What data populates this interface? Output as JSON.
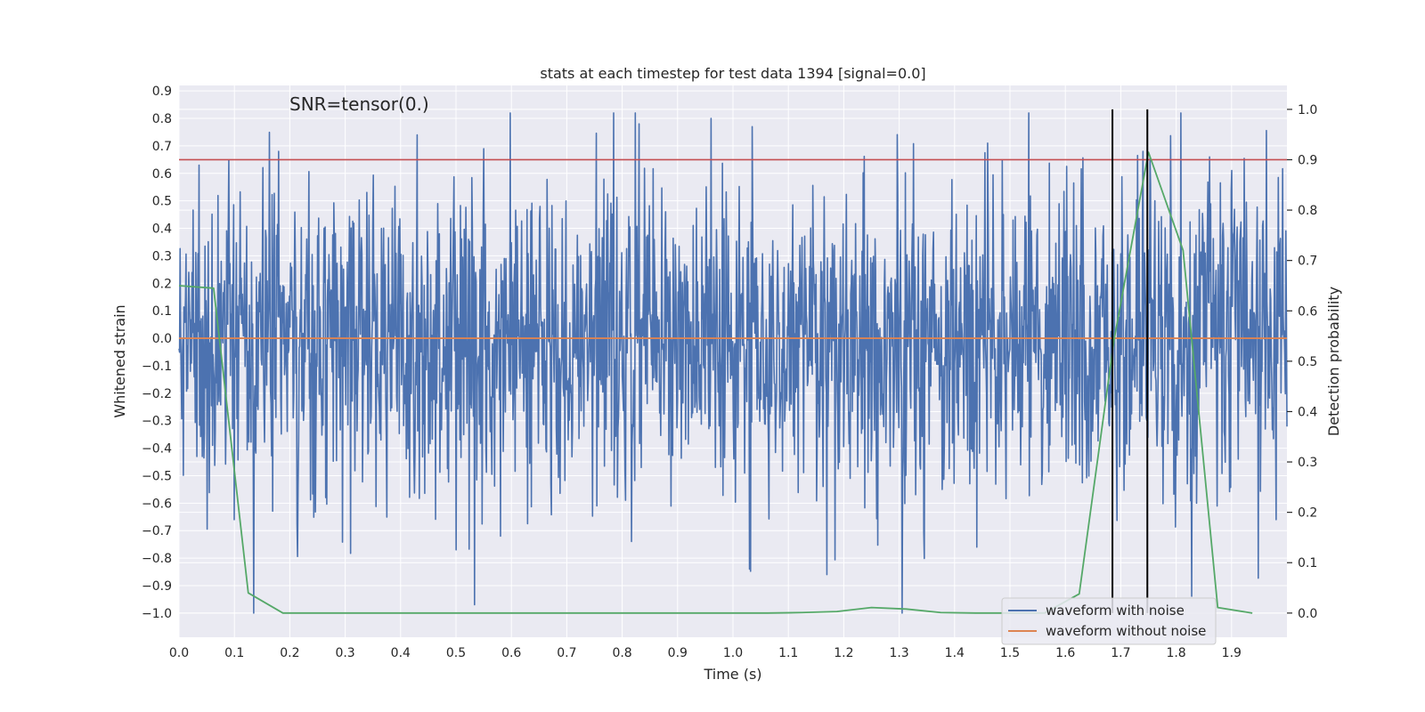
{
  "chart_data": {
    "type": "line",
    "title": "stats at each timestep for test data 1394 [signal=0.0]",
    "xlabel": "Time (s)",
    "ylabel": "Whitened strain",
    "y2label": "Detection probability",
    "xlim": [
      0.0,
      2.0
    ],
    "ylim": [
      -1.088,
      0.92
    ],
    "y2lim": [
      -0.048,
      1.0475
    ],
    "xticks": [
      0.0,
      0.1,
      0.2,
      0.3,
      0.4,
      0.5,
      0.6,
      0.7,
      0.8,
      0.9,
      1.0,
      1.1,
      1.2,
      1.3,
      1.4,
      1.5,
      1.6,
      1.7,
      1.8,
      1.9
    ],
    "xtick_labels": [
      "0.0",
      "0.1",
      "0.2",
      "0.3",
      "0.4",
      "0.5",
      "0.6",
      "0.7",
      "0.8",
      "0.9",
      "1.0",
      "1.1",
      "1.2",
      "1.3",
      "1.4",
      "1.5",
      "1.6",
      "1.7",
      "1.8",
      "1.9"
    ],
    "yticks": [
      0.9,
      0.8,
      0.7,
      0.6,
      0.5,
      0.4,
      0.3,
      0.2,
      0.1,
      0.0,
      -0.1,
      -0.2,
      -0.3,
      -0.4,
      -0.5,
      -0.6,
      -0.7,
      -0.8,
      -0.9,
      -1.0
    ],
    "ytick_labels": [
      "0.9",
      "0.8",
      "0.7",
      "0.6",
      "0.5",
      "0.4",
      "0.3",
      "0.2",
      "0.1",
      "0.0",
      "−0.1",
      "−0.2",
      "−0.3",
      "−0.4",
      "−0.5",
      "−0.6",
      "−0.7",
      "−0.8",
      "−0.9",
      "−1.0"
    ],
    "y2ticks": [
      1.0,
      0.9,
      0.8,
      0.7,
      0.6,
      0.5,
      0.4,
      0.3,
      0.2,
      0.1,
      0.0
    ],
    "y2tick_labels": [
      "1.0",
      "0.9",
      "0.8",
      "0.7",
      "0.6",
      "0.5",
      "0.4",
      "0.3",
      "0.2",
      "0.1",
      "0.0"
    ],
    "grid": true,
    "annotation": "SNR=tensor(0.)",
    "annotation_at": {
      "x": 0.2,
      "y": 0.83
    },
    "threshold": {
      "axis": "y2",
      "value": 0.9,
      "color": "#c44e52"
    },
    "vertical_markers": {
      "x": [
        1.685,
        1.748
      ],
      "y2_range": [
        0.0,
        1.0
      ],
      "color": "#000000"
    },
    "series": [
      {
        "name": "waveform with noise",
        "color": "#4c72b0",
        "axis": "y",
        "kind": "random-noise",
        "n_points": 2048,
        "x_range": [
          0.0,
          2.0
        ],
        "mean": 0.0,
        "std": 0.28,
        "y_min_clip": -1.0,
        "y_max_clip": 0.82,
        "seed": 1394,
        "spikes": [
          {
            "x": 0.18,
            "y": 0.68
          },
          {
            "x": 0.43,
            "y": 0.74
          },
          {
            "x": 0.55,
            "y": 0.69
          },
          {
            "x": 0.785,
            "y": 0.82
          },
          {
            "x": 0.83,
            "y": 0.78
          },
          {
            "x": 0.96,
            "y": 0.8
          },
          {
            "x": 1.035,
            "y": 0.77
          },
          {
            "x": 1.305,
            "y": 0.69
          },
          {
            "x": 1.46,
            "y": 0.71
          },
          {
            "x": 1.74,
            "y": 0.68
          },
          {
            "x": 1.86,
            "y": 0.66
          },
          {
            "x": 1.305,
            "y": -1.0
          },
          {
            "x": 1.03,
            "y": -0.84
          },
          {
            "x": 0.5,
            "y": -0.77
          },
          {
            "x": 0.58,
            "y": -0.72
          },
          {
            "x": 1.44,
            "y": -0.76
          },
          {
            "x": 0.1,
            "y": -0.66
          },
          {
            "x": 1.17,
            "y": -0.86
          },
          {
            "x": 1.98,
            "y": -0.66
          }
        ]
      },
      {
        "name": "waveform without noise",
        "color": "#dd8452",
        "axis": "y",
        "x": [
          0.0,
          2.0
        ],
        "y": [
          0.0,
          0.0
        ]
      },
      {
        "name": "Detection probability",
        "color": "#55a868",
        "axis": "y2",
        "x": [
          0.0,
          0.0625,
          0.125,
          0.1875,
          0.25,
          0.3125,
          0.375,
          0.4375,
          0.5,
          0.5625,
          0.625,
          0.6875,
          0.75,
          0.8125,
          0.875,
          0.9375,
          1.0,
          1.0625,
          1.125,
          1.1875,
          1.25,
          1.3125,
          1.375,
          1.4375,
          1.5,
          1.5625,
          1.625,
          1.6875,
          1.75,
          1.8125,
          1.875,
          1.9375
        ],
        "y": [
          0.65,
          0.645,
          0.04,
          0.0,
          0.0,
          0.0,
          0.0,
          0.0,
          0.0,
          0.0,
          0.0,
          0.0,
          0.0,
          0.0,
          0.0,
          0.0,
          0.0,
          0.0,
          0.001,
          0.003,
          0.011,
          0.008,
          0.001,
          0.0,
          0.0,
          0.0,
          0.038,
          0.54,
          0.915,
          0.72,
          0.011,
          0.0
        ]
      }
    ],
    "legend": {
      "placement": "bottom-right",
      "entries": [
        {
          "label": "waveform with noise",
          "color": "#4c72b0"
        },
        {
          "label": "waveform without noise",
          "color": "#dd8452"
        }
      ]
    }
  }
}
